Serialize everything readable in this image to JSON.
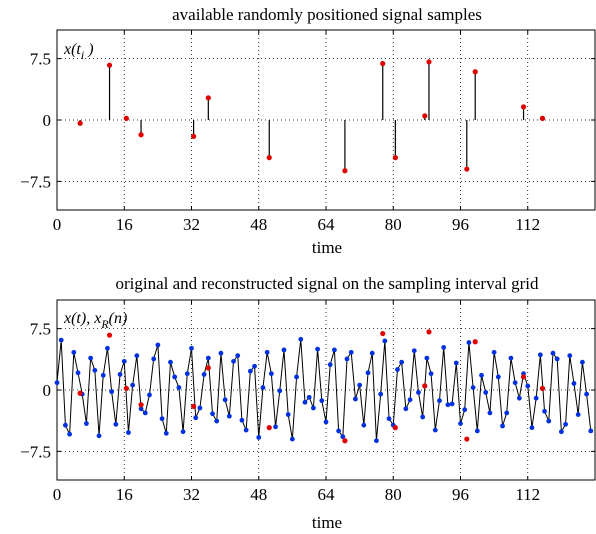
{
  "chart_data": [
    {
      "type": "stem",
      "title": "available randomly positioned signal samples",
      "xlabel": "time",
      "ylabel": "x(t_i)",
      "xlim": [
        0,
        128
      ],
      "ylim": [
        -11,
        11
      ],
      "xticks": [
        "0",
        "16",
        "32",
        "48",
        "64",
        "80",
        "96",
        "112"
      ],
      "yticks": [
        "7.5",
        "0",
        "−7.5"
      ],
      "grid": "dotted",
      "colors": {
        "markers": "#e00000",
        "stems": "#000000"
      },
      "samples": {
        "t": [
          5.5,
          12.5,
          16.5,
          20,
          32.5,
          36,
          50.5,
          68.5,
          77.5,
          80.5,
          87.5,
          88.5,
          97.5,
          99.5,
          111,
          115.5
        ],
        "x": [
          -0.4,
          6.7,
          0.2,
          -1.8,
          -2.0,
          2.7,
          -4.6,
          -6.2,
          6.9,
          -4.6,
          0.5,
          7.1,
          -6.0,
          5.9,
          1.6,
          0.2
        ]
      }
    },
    {
      "type": "line",
      "title": "original and reconstructed signal on the sampling interval grid",
      "xlabel": "time",
      "ylabel": "x(t), x_R(n)",
      "xlim": [
        0,
        128
      ],
      "ylim": [
        -11,
        11
      ],
      "xticks": [
        "0",
        "16",
        "32",
        "48",
        "64",
        "80",
        "96",
        "112"
      ],
      "yticks": [
        "7.5",
        "0",
        "−7.5"
      ],
      "grid": "dotted",
      "colors": {
        "line": "#000000",
        "reconstructed": "#0030e0",
        "samples": "#e00000"
      },
      "series": [
        {
          "x": [
            0,
            1,
            2,
            3,
            4,
            5,
            6,
            7,
            8,
            9,
            10,
            11,
            12,
            13,
            14,
            15,
            16,
            17,
            18,
            19,
            20,
            21,
            22,
            23,
            24,
            25,
            26,
            27,
            28,
            29,
            30,
            31,
            32,
            33,
            34,
            35,
            36,
            37,
            38,
            39,
            40,
            41,
            42,
            43,
            44,
            45,
            46,
            47,
            48,
            49,
            50,
            51,
            52,
            53,
            54,
            55,
            56,
            57,
            58,
            59,
            60,
            61,
            62,
            63,
            64,
            65,
            66,
            67,
            68,
            69,
            70,
            71,
            72,
            73,
            74,
            75,
            76,
            77,
            78,
            79,
            80,
            81,
            82,
            83,
            84,
            85,
            86,
            87,
            88,
            89,
            90,
            91,
            92,
            93,
            94,
            95,
            96,
            97,
            98,
            99,
            100,
            101,
            102,
            103,
            104,
            105,
            106,
            107,
            108,
            109,
            110,
            111,
            112,
            113,
            114,
            115,
            116,
            117,
            118,
            119,
            120,
            121,
            122,
            123,
            124,
            125,
            126,
            127
          ],
          "values": [
            0.9,
            6.1,
            -4.3,
            -5.4,
            4.6,
            2.1,
            -0.5,
            -4.1,
            3.9,
            2.4,
            -5.6,
            1.8,
            5.1,
            -0.2,
            -4.2,
            1.9,
            3.5,
            -5.2,
            0.6,
            4.2,
            -2.3,
            -2.8,
            -0.6,
            3.8,
            5.5,
            -3.5,
            -5.3,
            3.4,
            1.6,
            0.3,
            -5.1,
            2.0,
            5.1,
            -3.4,
            -2.2,
            1.9,
            3.9,
            -2.9,
            -3.8,
            4.5,
            -1.2,
            -3.2,
            3.5,
            4.2,
            -3.7,
            -4.9,
            2.3,
            2.9,
            -5.8,
            0.3,
            4.6,
            2.0,
            -4.5,
            -0.1,
            4.9,
            -3.0,
            -6.0,
            1.6,
            6.2,
            -1.5,
            -0.9,
            -2.2,
            5.0,
            -1.3,
            -3.9,
            3.1,
            4.9,
            -5.0,
            -5.7,
            3.8,
            4.6,
            -1.1,
            0.6,
            -4.3,
            2.1,
            4.5,
            -6.2,
            -0.5,
            6.0,
            -3.5,
            -4.3,
            2.5,
            3.4,
            -2.3,
            -1.2,
            4.8,
            -0.3,
            -3.3,
            3.9,
            2.0,
            -4.9,
            -1.3,
            5.2,
            -1.8,
            -1.7,
            3.3,
            -4.1,
            -2.4,
            5.8,
            0.3,
            -5.0,
            1.8,
            -0.3,
            -2.8,
            4.6,
            1.6,
            -4.4,
            -2.8,
            3.9,
            0.9,
            -1.0,
            2.0,
            0.5,
            -4.6,
            -1.0,
            4.3,
            -2.6,
            -3.8,
            4.5,
            3.8,
            -5.1,
            -4.2,
            4.2,
            0.8,
            -3.0,
            3.4,
            -0.5,
            -5.0
          ]
        }
      ],
      "samples": {
        "t": [
          5.5,
          12.5,
          16.5,
          20,
          32.5,
          36,
          50.5,
          68.5,
          77.5,
          80.5,
          87.5,
          88.5,
          97.5,
          99.5,
          111,
          115.5
        ],
        "x": [
          -0.4,
          6.7,
          0.2,
          -1.8,
          -2.0,
          2.7,
          -4.6,
          -6.2,
          6.9,
          -4.6,
          0.5,
          7.1,
          -6.0,
          5.9,
          1.6,
          0.2
        ]
      }
    }
  ]
}
